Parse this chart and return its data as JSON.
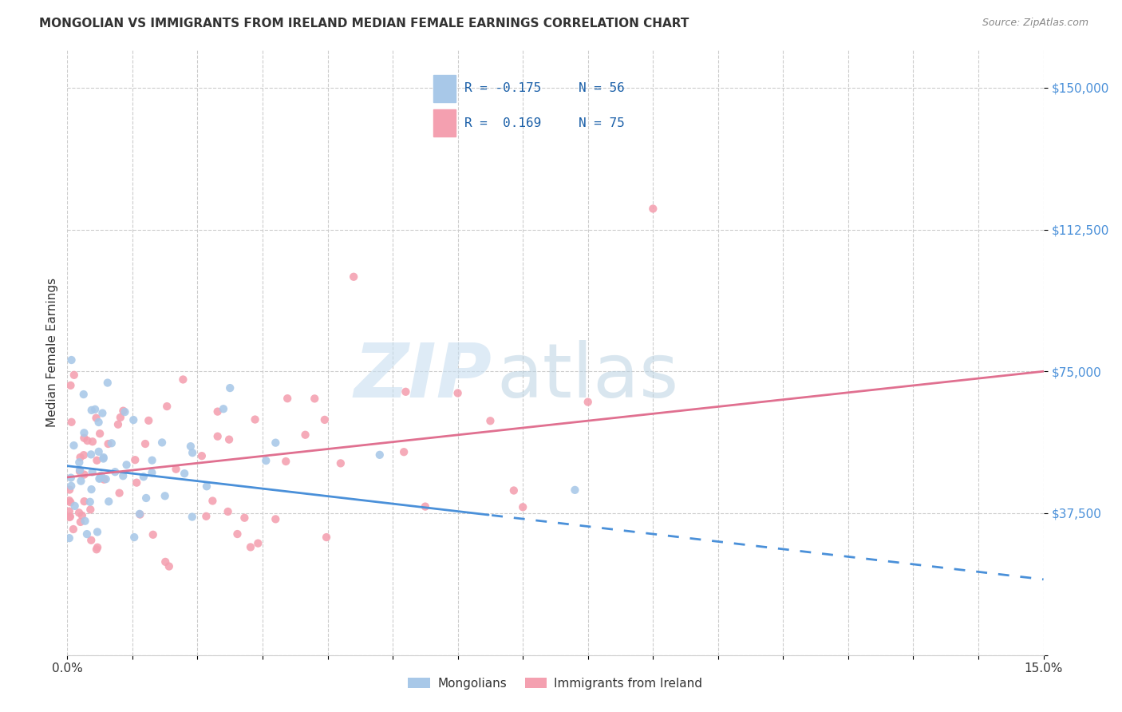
{
  "title": "MONGOLIAN VS IMMIGRANTS FROM IRELAND MEDIAN FEMALE EARNINGS CORRELATION CHART",
  "source": "Source: ZipAtlas.com",
  "ylabel": "Median Female Earnings",
  "background_color": "#ffffff",
  "grid_color": "#cccccc",
  "blue_scatter": "#a8c8e8",
  "pink_scatter": "#f4a0b0",
  "line_blue": "#4a90d9",
  "line_pink": "#e07090",
  "legend_R1": "R = -0.175",
  "legend_N1": "N = 56",
  "legend_R2": "R =  0.169",
  "legend_N2": "N = 75",
  "ytick_color": "#4a90d9",
  "xtick_color": "#333333",
  "title_color": "#333333",
  "source_color": "#888888",
  "ylabel_color": "#333333"
}
